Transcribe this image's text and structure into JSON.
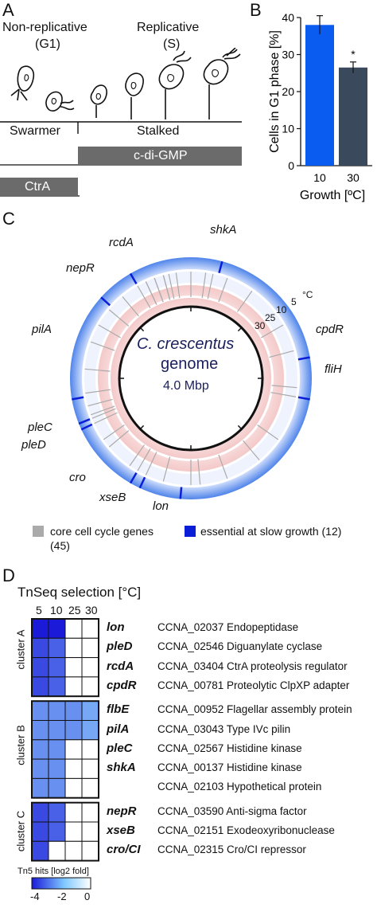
{
  "panelA": {
    "letter": "A",
    "nonrep_line1": "Non-replicative",
    "nonrep_line2": "(G1)",
    "rep_line1": "Replicative",
    "rep_line2": "(S)",
    "swarmer": "Swarmer",
    "stalked": "Stalked",
    "cdigmp": "c-di-GMP",
    "ctra": "CtrA"
  },
  "panelB": {
    "letter": "B",
    "ylabel": "Cells in G1 phase [%]",
    "xlabel": "Growth [ºC]",
    "significance": "*",
    "colors": {
      "bar10": "#0a5cf0",
      "bar30": "#3a4a5c"
    }
  },
  "chart_data": {
    "type": "bar",
    "categories": [
      "10",
      "30"
    ],
    "values": [
      38,
      26.5
    ],
    "errors": [
      2.5,
      1.5
    ],
    "ylabel": "Cells in G1 phase [%]",
    "xlabel": "Growth [ºC]",
    "ylim": [
      0,
      40
    ],
    "yticks": [
      "0",
      "10",
      "20",
      "30",
      "40"
    ]
  },
  "panelC": {
    "letter": "C",
    "center_line1": "C. crescentus",
    "center_line2": "genome",
    "center_line3": "4.0 Mbp",
    "ring_labels": [
      "5",
      "10",
      "25",
      "30"
    ],
    "unit": "°C",
    "genes": [
      "shkA",
      "rcdA",
      "nepR",
      "pilA",
      "cpdR",
      "fliH",
      "pleC",
      "pleD",
      "cro",
      "xseB",
      "lon"
    ],
    "legend_core": "core cell cycle genes",
    "legend_core_count": "(45)",
    "legend_essential": "essential at slow growth (12)",
    "colors": {
      "core": "#aaaaaa",
      "essential": "#0a1ed8"
    }
  },
  "panelD": {
    "letter": "D",
    "title": "TnSeq selection [°C]",
    "columns": [
      "5",
      "10",
      "25",
      "30"
    ],
    "clusters": [
      "cluster A",
      "cluster B",
      "cluster C"
    ],
    "rows": [
      {
        "gene": "lon",
        "desc": "CCNA_02037 Endopeptidase"
      },
      {
        "gene": "pleD",
        "desc": "CCNA_02546 Diguanylate cyclase"
      },
      {
        "gene": "rcdA",
        "desc": "CCNA_03404 CtrA proteolysis regulator"
      },
      {
        "gene": "cpdR",
        "desc": "CCNA_00781 Proteolytic ClpXP adapter"
      },
      {
        "gene": "flbE",
        "desc": "CCNA_00952 Flagellar assembly protein"
      },
      {
        "gene": "pilA",
        "desc": "CCNA_03043 Type IVc pilin"
      },
      {
        "gene": "pleC",
        "desc": "CCNA_02567 Histidine kinase"
      },
      {
        "gene": "shkA",
        "desc": "CCNA_00137 Histidine kinase"
      },
      {
        "gene": "",
        "desc": "CCNA_02103 Hypothetical protein"
      },
      {
        "gene": "nepR",
        "desc": "CCNA_03590 Anti-sigma factor"
      },
      {
        "gene": "xseB",
        "desc": "CCNA_02151 Exodeoxyribonuclease"
      },
      {
        "gene": "cro/CI",
        "desc": "CCNA_02315 Cro/CI repressor"
      }
    ],
    "heat": [
      [
        -4,
        -4,
        0,
        0
      ],
      [
        -3,
        -2.5,
        0,
        0
      ],
      [
        -3,
        -2.5,
        0,
        0
      ],
      [
        -3,
        -2.5,
        0,
        0
      ],
      [
        -1.5,
        -1.5,
        -1.5,
        -1
      ],
      [
        -1.5,
        -1.5,
        -1.5,
        -1
      ],
      [
        -1.5,
        -1.5,
        0,
        0
      ],
      [
        -1.5,
        -1.5,
        0,
        0
      ],
      [
        -1.5,
        -1.5,
        0,
        0
      ],
      [
        -3,
        -2.5,
        0,
        0
      ],
      [
        -3,
        -2.5,
        0,
        0
      ],
      [
        -3,
        0,
        0,
        0
      ]
    ],
    "scale_label": "Tn5 hits [log2 fold]",
    "scale_ticks": [
      "-4",
      "-2",
      "0"
    ]
  }
}
